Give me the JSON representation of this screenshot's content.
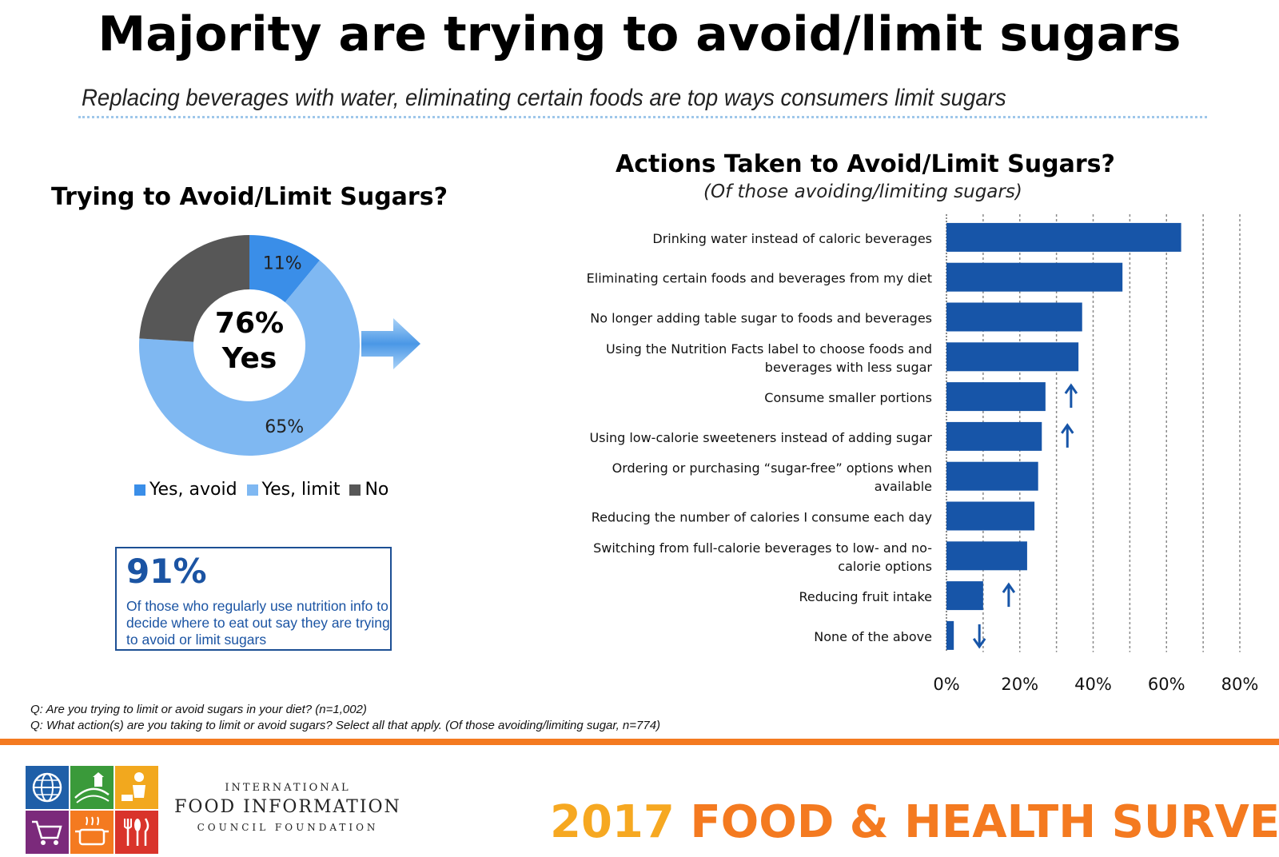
{
  "header": {
    "title": "Majority are trying to avoid/limit sugars",
    "subtitle": "Replacing beverages with water, eliminating certain foods are top ways consumers limit sugars"
  },
  "left_panel": {
    "title": "Trying to Avoid/Limit Sugars?",
    "center_label_line1": "76%",
    "center_label_line2": "Yes"
  },
  "stat_box": {
    "number": "91%",
    "text": "Of those who regularly use nutrition info to decide where to eat out say they are trying to avoid or limit sugars"
  },
  "right_panel": {
    "title": "Actions Taken to Avoid/Limit Sugars?",
    "subtitle": "(Of those avoiding/limiting sugars)"
  },
  "chart_data": [
    {
      "type": "pie",
      "title": "Trying to Avoid/Limit Sugars?",
      "style": "donut",
      "categories": [
        "Yes, avoid",
        "Yes, limit",
        "No"
      ],
      "values": [
        11,
        65,
        24
      ],
      "data_labels": [
        "11%",
        "65%",
        ""
      ],
      "colors": [
        "#3a8ee8",
        "#7fb8f2",
        "#575757"
      ],
      "legend": "bottom"
    },
    {
      "type": "bar",
      "orientation": "horizontal",
      "title": "Actions Taken to Avoid/Limit Sugars?",
      "subtitle": "(Of those avoiding/limiting sugars)",
      "categories": [
        "Drinking water instead of caloric beverages",
        "Eliminating certain foods and beverages from my diet",
        "No longer adding table sugar to foods and beverages",
        "Using the Nutrition Facts label to choose foods and beverages with less sugar",
        "Consume smaller portions",
        "Using low-calorie sweeteners instead of adding sugar",
        "Ordering or purchasing “sugar-free” options when available",
        "Reducing the number of calories I consume each day",
        "Switching from full-calorie beverages to low- and no-calorie options",
        "Reducing fruit intake",
        "None of the above"
      ],
      "label_lines": [
        [
          "Drinking water instead of caloric beverages"
        ],
        [
          "Eliminating certain foods and beverages from my diet"
        ],
        [
          "No longer adding table sugar to foods and beverages"
        ],
        [
          "Using the Nutrition Facts label to choose foods and",
          "beverages with less sugar"
        ],
        [
          "Consume smaller portions"
        ],
        [
          "Using low-calorie sweeteners instead of adding sugar"
        ],
        [
          "Ordering or purchasing “sugar-free” options when",
          "available"
        ],
        [
          "Reducing the number of calories I consume each day"
        ],
        [
          "Switching from full-calorie beverages to low- and no-",
          "calorie options"
        ],
        [
          "Reducing fruit intake"
        ],
        [
          "None of the above"
        ]
      ],
      "values": [
        64,
        48,
        37,
        36,
        27,
        26,
        25,
        24,
        22,
        10,
        2
      ],
      "trend": [
        "",
        "",
        "",
        "",
        "up",
        "up",
        "",
        "",
        "",
        "up",
        "down"
      ],
      "xlim": [
        0,
        80
      ],
      "xticks": [
        "0%",
        "20%",
        "40%",
        "60%",
        "80%"
      ],
      "bar_color": "#1755a8",
      "grid": "vertical dotted"
    }
  ],
  "footnotes": [
    "Q: Are you trying to limit or avoid sugars in your diet? (n=1,002)",
    "Q: What action(s) are you taking to limit or avoid sugars? Select all that apply. (Of those avoiding/limiting sugar, n=774)"
  ],
  "footer": {
    "org_line1": "INTERNATIONAL",
    "org_line2": "FOOD INFORMATION",
    "org_line3": "COUNCIL FOUNDATION",
    "survey_year": "2017",
    "survey_name": "FOOD & HEALTH SURVEY",
    "logo_colors": [
      "#1f5fa8",
      "#3a9a3a",
      "#f2a81e",
      "#7b2a7b",
      "#f47a20",
      "#d9342b"
    ]
  }
}
